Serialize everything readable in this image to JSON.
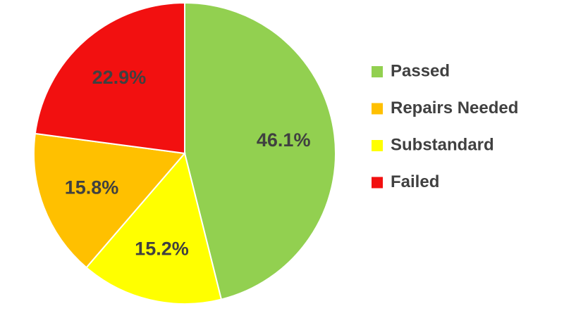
{
  "chart_data": {
    "type": "pie",
    "categories": [
      "Passed",
      "Repairs Needed",
      "Substandard",
      "Failed"
    ],
    "values": [
      46.1,
      15.8,
      15.2,
      22.9
    ],
    "value_labels": [
      "46.1%",
      "15.8%",
      "15.2%",
      "22.9%"
    ],
    "colors": [
      "#92d050",
      "#ffc000",
      "#ffff00",
      "#f21010"
    ],
    "legend": "right"
  }
}
